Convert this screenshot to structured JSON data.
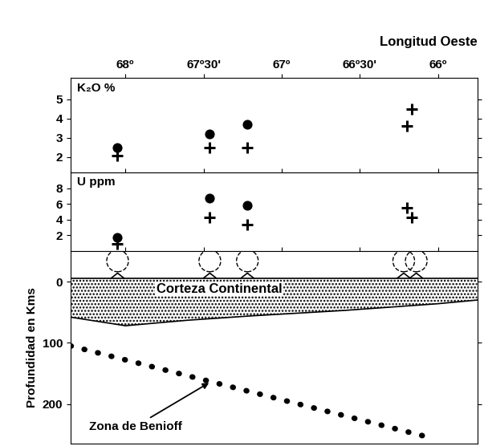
{
  "chart_data": [
    {
      "type": "scatter",
      "label": "K₂O %",
      "xlabel": "Longitud Oeste",
      "xlim": [
        68.35,
        65.75
      ],
      "xticks": [
        {
          "value": 68,
          "label": "68º"
        },
        {
          "value": 67.5,
          "label": "67º30'"
        },
        {
          "value": 67,
          "label": "67º"
        },
        {
          "value": 66.5,
          "label": "66º30'"
        },
        {
          "value": 66,
          "label": "66º"
        }
      ],
      "ylim": [
        1.2,
        6.1
      ],
      "yticks": [
        2,
        3,
        4,
        5
      ],
      "series": [
        {
          "marker": "circle",
          "color": "#000000",
          "x": [
            68.05,
            67.46,
            67.22
          ],
          "values": [
            2.5,
            3.2,
            3.7
          ]
        },
        {
          "marker": "plus",
          "color": "#000000",
          "x": [
            68.05,
            67.46,
            67.22,
            66.2,
            66.17
          ],
          "values": [
            2.1,
            2.5,
            2.5,
            3.6,
            4.5
          ]
        }
      ]
    },
    {
      "type": "scatter",
      "label": "U ppm",
      "tick_labels": "y",
      "xlim": [
        68.35,
        65.75
      ],
      "xticks": [
        {
          "value": 68,
          "label": "68º"
        },
        {
          "value": 67.5,
          "label": "67º30'"
        },
        {
          "value": 67,
          "label": "67º"
        },
        {
          "value": 66.5,
          "label": "66º30'"
        },
        {
          "value": 66,
          "label": "66º"
        }
      ],
      "ylim": [
        0,
        10
      ],
      "yticks": [
        2,
        4,
        6,
        8
      ],
      "series": [
        {
          "marker": "circle",
          "color": "#000000",
          "x": [
            68.05,
            67.46,
            67.22
          ],
          "values": [
            1.7,
            6.7,
            5.8
          ]
        },
        {
          "marker": "plus",
          "color": "#000000",
          "x": [
            68.05,
            67.46,
            67.22,
            66.2,
            66.17
          ],
          "values": [
            0.9,
            4.3,
            3.4,
            5.5,
            4.3
          ]
        }
      ]
    },
    {
      "type": "cross_section",
      "ylabel": "Profundidad en Kms",
      "tick_labels": "y",
      "xlim": [
        68.35,
        65.75
      ],
      "xticks": [
        {
          "value": 68,
          "label": "68º"
        },
        {
          "value": 67.5,
          "label": "67º30'"
        },
        {
          "value": 67,
          "label": "67º"
        },
        {
          "value": 66.5,
          "label": "66º30'"
        },
        {
          "value": 66,
          "label": "66º"
        }
      ],
      "ylim": [
        265,
        -50
      ],
      "yticks": [
        0,
        100,
        200
      ],
      "crust": {
        "label": "Corteza Continental",
        "x": [
          68.35,
          68.0,
          67.6,
          67.2,
          66.6,
          66.0,
          65.75
        ],
        "top": [
          -6,
          -6,
          -6,
          -6,
          -6,
          -6,
          -6
        ],
        "bottom": [
          58,
          72,
          63,
          56,
          47,
          36,
          30
        ]
      },
      "benioff": {
        "label": "Zona de Benioff",
        "x": [
          68.35,
          66.05
        ],
        "depth": [
          105,
          255
        ],
        "line_style": "dotted"
      },
      "volcanoes": [
        68.05,
        67.46,
        67.22,
        66.22,
        66.14
      ]
    }
  ]
}
